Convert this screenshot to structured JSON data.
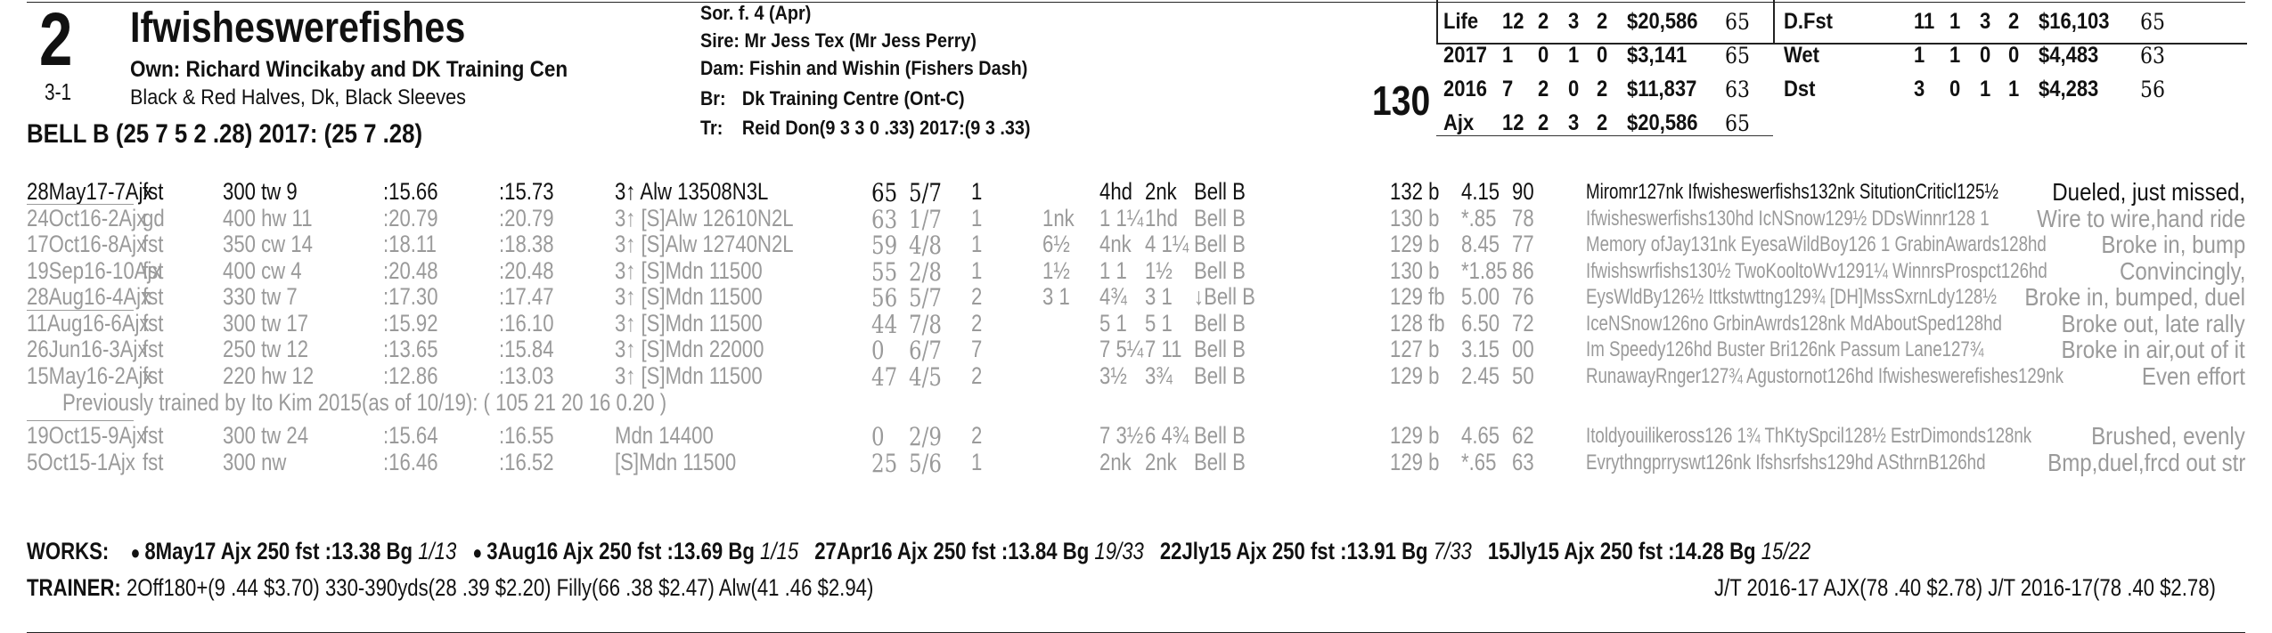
{
  "horse": {
    "program_number": "2",
    "odds": "3-1",
    "name": "Ifwisheswerefishes",
    "owner": "Own: Richard Wincikaby and DK Training Cen",
    "silks": "Black & Red Halves, Dk, Black Sleeves",
    "jockey_line": "BELL B (25 7 5 2 .28) 2017: (25 7 .28)"
  },
  "breeding": {
    "sex_age": "Sor. f. 4 (Apr)",
    "sire_label": "Sire:",
    "sire": "Mr Jess Tex (Mr Jess Perry)",
    "dam_label": "Dam:",
    "dam": "Fishin and Wishin (Fishers Dash)",
    "breeder_label": "Br:",
    "breeder": "Dk Training Centre (Ont-C)",
    "trainer_label": "Tr:",
    "trainer": "Reid Don(9 3 3 0 .33)  2017:(9 3 .33)"
  },
  "weight": "130",
  "records_left": [
    [
      "Life",
      "12",
      "2",
      "3",
      "2",
      "$20,586",
      "65"
    ],
    [
      "2017",
      "1",
      "0",
      "1",
      "0",
      "$3,141",
      "65"
    ],
    [
      "2016",
      "7",
      "2",
      "0",
      "2",
      "$11,837",
      "63"
    ],
    [
      "Ajx",
      "12",
      "2",
      "3",
      "2",
      "$20,586",
      "65"
    ]
  ],
  "records_right": [
    [
      "D.Fst",
      "11",
      "1",
      "3",
      "2",
      "$16,103",
      "65"
    ],
    [
      "Wet",
      "1",
      "1",
      "0",
      "0",
      "$4,483",
      "63"
    ],
    [
      "Dst",
      "3",
      "0",
      "1",
      "1",
      "$4,283",
      "56"
    ]
  ],
  "races": [
    {
      "date": "28May17-7Ajx",
      "surf": "fst",
      "dist": "300 tw 9",
      "f1": ":15.66",
      "f2": ":15.73",
      "cls": "3↑ Alw 13508N3L",
      "spd": "65",
      "pp": "5/7",
      "st": "1",
      "c1": "",
      "c2": "4hd",
      "fin": "2nk",
      "jock": "Bell B",
      "wt": "132 b",
      "odds": "4.15",
      "fig": "90",
      "comp": "Miromr127nk Ifwisheswerfishs132nk SitutionCriticl125½",
      "cmt": "Dueled, just missed,",
      "active": true
    },
    {
      "date": "24Oct16-2Ajx",
      "surf": "gd",
      "dist": "400 hw 11",
      "f1": ":20.79",
      "f2": ":20.79",
      "cls": "3↑ [S]Alw 12610N2L",
      "spd": "63",
      "pp": "1/7",
      "st": "1",
      "c1": "1nk",
      "c2": "1 1¼",
      "fin": "1hd",
      "jock": "Bell B",
      "wt": "130 b",
      "odds": "*.85",
      "fig": "78",
      "comp": "Ifwisheswerfishs130hd IcNSnow129½ DDsWinnr128 1",
      "cmt": "Wire to wire,hand ride",
      "active": false
    },
    {
      "date": "17Oct16-8Ajx",
      "surf": "fst",
      "dist": "350 cw 14",
      "f1": ":18.11",
      "f2": ":18.38",
      "cls": "3↑ [S]Alw 12740N2L",
      "spd": "59",
      "pp": "4/8",
      "st": "1",
      "c1": "6½",
      "c2": "4nk",
      "fin": "4 1¼",
      "jock": "Bell B",
      "wt": "129 b",
      "odds": "8.45",
      "fig": "77",
      "comp": "Memory ofJay131nk EyesaWildBoy126 1 GrabinAwards128hd",
      "cmt": "Broke in, bump",
      "active": false
    },
    {
      "date": "19Sep16-10Ajx",
      "surf": "fst",
      "dist": "400 cw 4",
      "f1": ":20.48",
      "f2": ":20.48",
      "cls": "3↑ [S]Mdn 11500",
      "spd": "55",
      "pp": "2/8",
      "st": "1",
      "c1": "1½",
      "c2": "1 1",
      "fin": "1½",
      "jock": "Bell B",
      "wt": "130 b",
      "odds": "*1.85",
      "fig": "86",
      "comp": "Ifwishswrfishs130½ TwoKooltoWv1291¼ WinnrsProspct126hd",
      "cmt": "Convincingly,",
      "active": false
    },
    {
      "date": "28Aug16-4Ajx",
      "surf": "fst",
      "dist": "330 tw 7",
      "f1": ":17.30",
      "f2": ":17.47",
      "cls": "3↑ [S]Mdn 11500",
      "spd": "56",
      "pp": "5/7",
      "st": "2",
      "c1": "3 1",
      "c2": "4¾",
      "fin": "3 1",
      "jock": "↓Bell B",
      "wt": "129 fb",
      "odds": "5.00",
      "fig": "76",
      "comp": "EysWldBy126½ Ittkstwttng129¾ [DH]MssSxrnLdy128½",
      "cmt": "Broke in, bumped, duel",
      "active": false
    },
    {
      "date": "11Aug16-6Ajx",
      "surf": "fst",
      "dist": "300 tw 17",
      "f1": ":15.92",
      "f2": ":16.10",
      "cls": "3↑ [S]Mdn 11500",
      "spd": "44",
      "pp": "7/8",
      "st": "2",
      "c1": "",
      "c2": "5 1",
      "fin": "5 1",
      "jock": "Bell B",
      "wt": "128 fb",
      "odds": "6.50",
      "fig": "72",
      "comp": "IceNSnow126no GrbinAwrds128nk MdAboutSped128hd",
      "cmt": "Broke out, late rally",
      "active": false
    },
    {
      "date": "26Jun16-3Ajx",
      "surf": "fst",
      "dist": "250 tw 12",
      "f1": ":13.65",
      "f2": ":15.84",
      "cls": "3↑ [S]Mdn 22000",
      "spd": "0",
      "pp": "6/7",
      "st": "7",
      "c1": "",
      "c2": "7 5¼",
      "fin": "7 11",
      "jock": "Bell B",
      "wt": "127 b",
      "odds": "3.15",
      "fig": "00",
      "comp": "Im Speedy126hd Buster Bri126nk Passum Lane127¾",
      "cmt": "Broke in air,out of it",
      "active": false
    },
    {
      "date": "15May16-2Ajx",
      "surf": "fst",
      "dist": "220 hw 12",
      "f1": ":12.86",
      "f2": ":13.03",
      "cls": "3↑ [S]Mdn 11500",
      "spd": "47",
      "pp": "4/5",
      "st": "2",
      "c1": "",
      "c2": "3½",
      "fin": "3¾",
      "jock": "Bell B",
      "wt": "129 b",
      "odds": "2.45",
      "fig": "50",
      "comp": "RunawayRnger127¾ Agustornot126hd Ifwisheswerefishes129nk",
      "cmt": "Even effort",
      "active": false
    }
  ],
  "previously_trained": "Previously trained by Ito Kim 2015(as of 10/19): ( 105 21 20 16 0.20 )",
  "races_2015": [
    {
      "date": "19Oct15-9Ajx",
      "surf": "fst",
      "dist": "300 tw 24",
      "f1": ":15.64",
      "f2": ":16.55",
      "cls": "Mdn 14400",
      "spd": "0",
      "pp": "2/9",
      "st": "2",
      "c1": "",
      "c2": "7 3½",
      "fin": "6 4¾",
      "jock": "Bell B",
      "wt": "129 b",
      "odds": "4.65",
      "fig": "62",
      "comp": "Itoldyouilikeross126 1¾ ThKtySpcil128½ EstrDimonds128nk",
      "cmt": "Brushed, evenly",
      "active": false
    },
    {
      "date": "5Oct15-1Ajx",
      "surf": "fst",
      "dist": "300 nw",
      "f1": ":16.46",
      "f2": ":16.52",
      "cls": "[S]Mdn 11500",
      "spd": "25",
      "pp": "5/6",
      "st": "1",
      "c1": "",
      "c2": "2nk",
      "fin": "2nk",
      "jock": "Bell B",
      "wt": "129 b",
      "odds": "*.65",
      "fig": "63",
      "comp": "Evrythngprryswt126nk Ifshsrfshs129hd ASthrnB126hd",
      "cmt": "Bmp,duel,frcd out str",
      "active": false
    }
  ],
  "works": {
    "label": "WORKS:",
    "items": [
      {
        "bullet": "●",
        "text": "8May17 Ajx 250 fst :13.38 Bg",
        "rank": "1/13"
      },
      {
        "bullet": "●",
        "text": "3Aug16 Ajx 250 fst :13.69 Bg",
        "rank": "1/15"
      },
      {
        "bullet": "",
        "text": "27Apr16 Ajx 250 fst :13.84 Bg",
        "rank": "19/33"
      },
      {
        "bullet": "",
        "text": "22Jly15 Ajx 250 fst :13.91 Bg",
        "rank": "7/33"
      },
      {
        "bullet": "",
        "text": "15Jly15 Ajx 250 fst :14.28 Bg",
        "rank": "15/22"
      }
    ]
  },
  "trainer_stats": {
    "label": "TRAINER:",
    "text": "2Off180+(9 .44 $3.70) 330-390yds(28 .39 $2.20) Filly(66 .38 $2.47) Alw(41 .46 $2.94)",
    "jt": "J/T 2016-17 AJX(78 .40 $2.78)  J/T 2016-17(78 .40 $2.78)"
  }
}
